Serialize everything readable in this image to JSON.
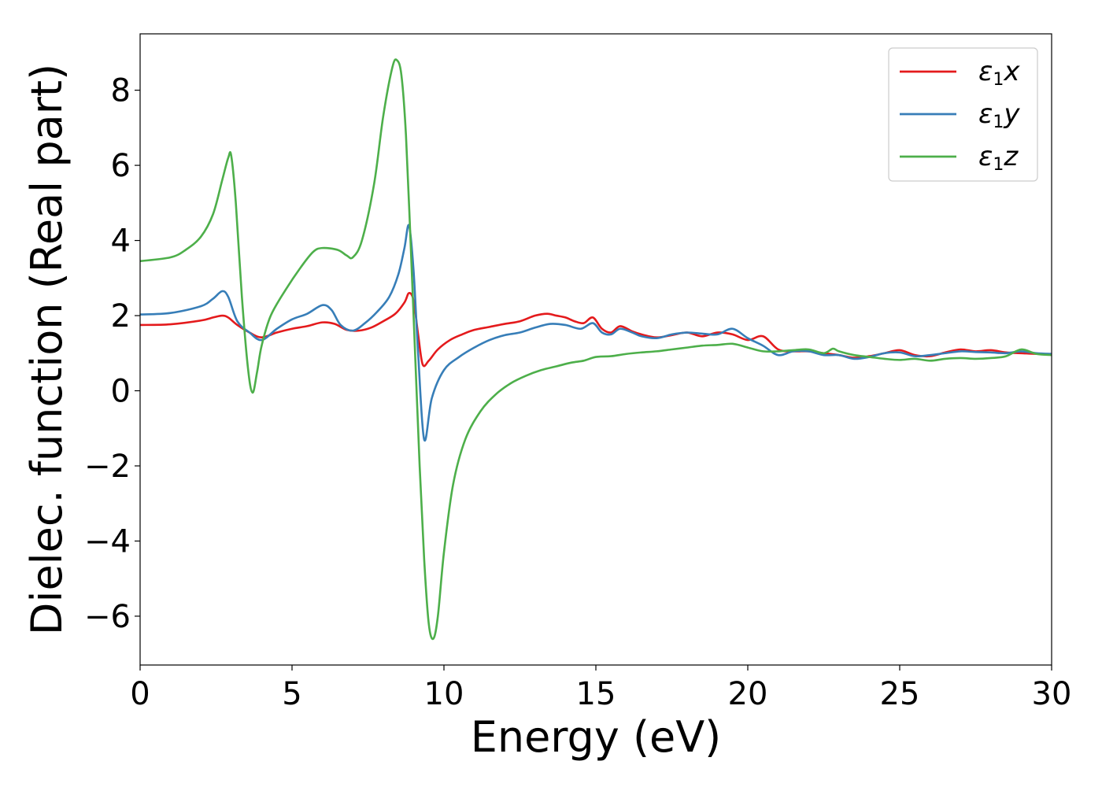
{
  "chart_data": {
    "type": "line",
    "title": "",
    "xlabel": "Energy (eV)",
    "ylabel": "Dielec. function (Real part)",
    "xlim": [
      0,
      30
    ],
    "ylim": [
      -7.3,
      9.5
    ],
    "xticks": [
      0,
      5,
      10,
      15,
      20,
      25,
      30
    ],
    "yticks": [
      -6,
      -4,
      -2,
      0,
      2,
      4,
      6,
      8
    ],
    "xtick_labels": [
      "0",
      "5",
      "10",
      "15",
      "20",
      "25",
      "30"
    ],
    "ytick_labels": [
      "−6",
      "−4",
      "−2",
      "0",
      "2",
      "4",
      "6",
      "8"
    ],
    "grid": false,
    "legend_position": "top-right",
    "series": [
      {
        "name": "ε1x",
        "legend_base": "ε",
        "legend_sub": "1",
        "legend_tail": "x",
        "color": "#e41a1c",
        "x": [
          0,
          1,
          2,
          2.4,
          2.7,
          2.9,
          3.2,
          3.6,
          4.0,
          4.5,
          5.0,
          5.5,
          6.0,
          6.4,
          6.8,
          7.2,
          7.6,
          8.0,
          8.4,
          8.7,
          8.85,
          9.0,
          9.15,
          9.3,
          9.5,
          9.8,
          10.2,
          10.6,
          11.0,
          11.5,
          12.0,
          12.5,
          13.0,
          13.4,
          13.7,
          14.0,
          14.3,
          14.6,
          14.9,
          15.2,
          15.5,
          15.8,
          16.2,
          16.5,
          17.0,
          17.5,
          18.0,
          18.5,
          19.0,
          19.5,
          20.0,
          20.5,
          21.0,
          21.5,
          22.0,
          22.5,
          23.0,
          23.5,
          24.0,
          24.5,
          25.0,
          25.5,
          26.0,
          26.5,
          27.0,
          27.5,
          28.0,
          28.5,
          29.0,
          29.5,
          30.0
        ],
        "y": [
          1.75,
          1.77,
          1.87,
          1.95,
          2.0,
          1.95,
          1.75,
          1.55,
          1.42,
          1.55,
          1.65,
          1.72,
          1.82,
          1.78,
          1.62,
          1.6,
          1.68,
          1.85,
          2.05,
          2.35,
          2.6,
          2.4,
          1.5,
          0.7,
          0.8,
          1.1,
          1.35,
          1.5,
          1.62,
          1.7,
          1.78,
          1.85,
          2.0,
          2.05,
          2.0,
          1.95,
          1.85,
          1.8,
          1.95,
          1.65,
          1.55,
          1.72,
          1.58,
          1.5,
          1.42,
          1.48,
          1.55,
          1.45,
          1.55,
          1.5,
          1.35,
          1.45,
          1.1,
          1.05,
          1.05,
          1.0,
          0.95,
          0.88,
          0.92,
          1.0,
          1.08,
          0.95,
          0.92,
          1.02,
          1.1,
          1.05,
          1.08,
          1.02,
          1.0,
          0.98,
          0.98
        ]
      },
      {
        "name": "ε1y",
        "legend_base": "ε",
        "legend_sub": "1",
        "legend_tail": "y",
        "color": "#377eb8",
        "x": [
          0,
          1,
          2,
          2.4,
          2.7,
          2.9,
          3.2,
          3.6,
          4.0,
          4.5,
          5.0,
          5.5,
          6.0,
          6.3,
          6.6,
          7.0,
          7.4,
          7.8,
          8.2,
          8.5,
          8.7,
          8.85,
          9.0,
          9.15,
          9.35,
          9.6,
          10.0,
          10.5,
          11.0,
          11.5,
          12.0,
          12.5,
          13.0,
          13.5,
          14.0,
          14.5,
          14.9,
          15.2,
          15.5,
          15.8,
          16.2,
          16.5,
          17.0,
          17.5,
          18.0,
          18.5,
          19.0,
          19.5,
          20.0,
          20.5,
          21.0,
          21.5,
          22.0,
          22.5,
          23.0,
          23.5,
          24.0,
          24.5,
          25.0,
          25.5,
          26.0,
          26.5,
          27.0,
          27.5,
          28.0,
          28.5,
          29.0,
          29.5,
          30.0
        ],
        "y": [
          2.03,
          2.07,
          2.25,
          2.45,
          2.65,
          2.5,
          1.85,
          1.55,
          1.35,
          1.65,
          1.9,
          2.05,
          2.28,
          2.15,
          1.75,
          1.6,
          1.8,
          2.1,
          2.5,
          3.1,
          3.8,
          4.4,
          3.2,
          1.0,
          -1.3,
          -0.2,
          0.55,
          0.9,
          1.15,
          1.35,
          1.48,
          1.55,
          1.68,
          1.78,
          1.75,
          1.65,
          1.8,
          1.55,
          1.5,
          1.65,
          1.55,
          1.45,
          1.4,
          1.5,
          1.55,
          1.52,
          1.5,
          1.65,
          1.4,
          1.2,
          0.95,
          1.05,
          1.05,
          0.95,
          0.95,
          0.85,
          0.9,
          1.0,
          1.02,
          0.92,
          0.95,
          1.0,
          1.05,
          1.03,
          1.02,
          1.0,
          1.05,
          1.0,
          0.98
        ]
      },
      {
        "name": "ε1z",
        "legend_base": "ε",
        "legend_sub": "1",
        "legend_tail": "z",
        "color": "#4daf4a",
        "x": [
          0,
          1,
          1.5,
          2.0,
          2.4,
          2.7,
          2.9,
          3.0,
          3.15,
          3.35,
          3.55,
          3.7,
          3.85,
          4.0,
          4.3,
          4.8,
          5.3,
          5.7,
          6.0,
          6.5,
          6.8,
          7.0,
          7.3,
          7.7,
          8.0,
          8.3,
          8.45,
          8.6,
          8.75,
          8.9,
          9.05,
          9.2,
          9.35,
          9.5,
          9.65,
          9.8,
          10.0,
          10.3,
          10.7,
          11.2,
          11.7,
          12.2,
          12.7,
          13.2,
          13.7,
          14.2,
          14.6,
          15.0,
          15.5,
          16.0,
          16.5,
          17.0,
          17.5,
          18.0,
          18.5,
          19.0,
          19.5,
          20.0,
          20.5,
          21.0,
          21.5,
          22.0,
          22.5,
          22.8,
          23.0,
          23.5,
          24.0,
          24.5,
          25.0,
          25.5,
          26.0,
          26.5,
          27.0,
          27.5,
          28.0,
          28.5,
          29.0,
          29.5,
          30.0
        ],
        "y": [
          3.45,
          3.55,
          3.75,
          4.1,
          4.7,
          5.6,
          6.2,
          6.25,
          5.0,
          2.5,
          0.6,
          -0.05,
          0.5,
          1.2,
          2.0,
          2.7,
          3.3,
          3.7,
          3.8,
          3.75,
          3.6,
          3.55,
          4.0,
          5.5,
          7.3,
          8.6,
          8.8,
          8.4,
          6.8,
          4.0,
          1.0,
          -2.0,
          -4.5,
          -6.2,
          -6.6,
          -6.0,
          -4.3,
          -2.5,
          -1.3,
          -0.55,
          -0.1,
          0.2,
          0.4,
          0.55,
          0.65,
          0.75,
          0.8,
          0.9,
          0.92,
          0.98,
          1.02,
          1.05,
          1.1,
          1.15,
          1.2,
          1.22,
          1.25,
          1.15,
          1.05,
          1.05,
          1.08,
          1.1,
          1.0,
          1.12,
          1.05,
          0.95,
          0.9,
          0.85,
          0.82,
          0.85,
          0.8,
          0.85,
          0.87,
          0.85,
          0.87,
          0.92,
          1.1,
          0.98,
          0.95
        ]
      }
    ]
  }
}
